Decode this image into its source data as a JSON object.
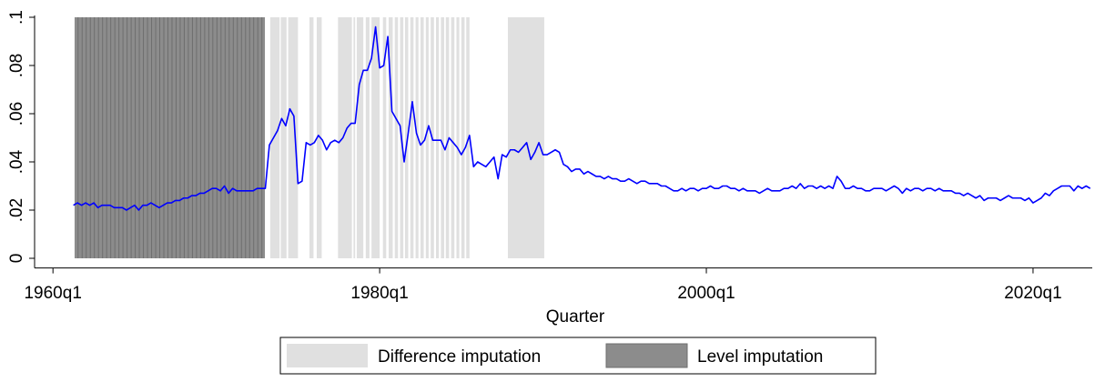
{
  "chart_data": {
    "type": "line",
    "x_label": "Quarter",
    "xlim": [
      -4.5,
      254.5
    ],
    "xticks": [
      {
        "value": 0,
        "label": "1960q1"
      },
      {
        "value": 80,
        "label": "1980q1"
      },
      {
        "value": 160,
        "label": "2000q1"
      },
      {
        "value": 240,
        "label": "2020q1"
      }
    ],
    "ylim": [
      -0.004,
      0.1
    ],
    "yticks": [
      0,
      {
        "value": 0.02,
        "label": ".02"
      },
      {
        "value": 0.04,
        "label": ".04"
      },
      {
        "value": 0.06,
        "label": ".06"
      },
      {
        "value": 0.08,
        "label": ".08"
      },
      {
        "value": 0.1,
        "label": ".1"
      }
    ],
    "legend": "bottom",
    "shaded": [
      {
        "name": "Difference imputation",
        "color": "#e0e0e0",
        "spans": [
          [
            53.2,
            55.5
          ],
          [
            55.8,
            57.2
          ],
          [
            57.6,
            60
          ],
          [
            62.8,
            63.8
          ],
          [
            64.6,
            65.8
          ],
          [
            69.8,
            73.2
          ],
          [
            73.6,
            74
          ],
          [
            74.4,
            76
          ],
          [
            76.6,
            77.5
          ],
          [
            78,
            80
          ],
          [
            80.8,
            81.6
          ],
          [
            82.2,
            83.2
          ],
          [
            83.7,
            84.5
          ],
          [
            85,
            85.8
          ],
          [
            86.2,
            87
          ],
          [
            87.5,
            88.3
          ],
          [
            88.8,
            89.5
          ],
          [
            90,
            90.8
          ],
          [
            91.3,
            92
          ],
          [
            92.5,
            93.3
          ],
          [
            93.8,
            94.5
          ],
          [
            95,
            95.8
          ],
          [
            96.2,
            97
          ],
          [
            97.5,
            98.3
          ],
          [
            98.8,
            99.5
          ],
          [
            100,
            100.8
          ],
          [
            101.2,
            102
          ],
          [
            111.4,
            120.3
          ]
        ]
      },
      {
        "name": "Level imputation",
        "color": "#8c8c8c",
        "spans": [
          [
            5.3,
            51.9
          ]
        ]
      }
    ],
    "x": [
      5,
      6,
      7,
      8,
      9,
      10,
      11,
      12,
      13,
      14,
      15,
      16,
      17,
      18,
      19,
      20,
      21,
      22,
      23,
      24,
      25,
      26,
      27,
      28,
      29,
      30,
      31,
      32,
      33,
      34,
      35,
      36,
      37,
      38,
      39,
      40,
      41,
      42,
      43,
      44,
      45,
      46,
      47,
      48,
      49,
      50,
      51,
      52,
      53,
      54,
      55,
      56,
      57,
      58,
      59,
      60,
      61,
      62,
      63,
      64,
      65,
      66,
      67,
      68,
      69,
      70,
      71,
      72,
      73,
      74,
      75,
      76,
      77,
      78,
      79,
      80,
      81,
      82,
      83,
      84,
      85,
      86,
      87,
      88,
      89,
      90,
      91,
      92,
      93,
      94,
      95,
      96,
      97,
      98,
      99,
      100,
      101,
      102,
      103,
      104,
      105,
      106,
      107,
      108,
      109,
      110,
      111,
      112,
      113,
      114,
      115,
      116,
      117,
      118,
      119,
      120,
      121,
      122,
      123,
      124,
      125,
      126,
      127,
      128,
      129,
      130,
      131,
      132,
      133,
      134,
      135,
      136,
      137,
      138,
      139,
      140,
      141,
      142,
      143,
      144,
      145,
      146,
      147,
      148,
      149,
      150,
      151,
      152,
      153,
      154,
      155,
      156,
      157,
      158,
      159,
      160,
      161,
      162,
      163,
      164,
      165,
      166,
      167,
      168,
      169,
      170,
      171,
      172,
      173,
      174,
      175,
      176,
      177,
      178,
      179,
      180,
      181,
      182,
      183,
      184,
      185,
      186,
      187,
      188,
      189,
      190,
      191,
      192,
      193,
      194,
      195,
      196,
      197,
      198,
      199,
      200,
      201,
      202,
      203,
      204,
      205,
      206,
      207,
      208,
      209,
      210,
      211,
      212,
      213,
      214,
      215,
      216,
      217,
      218,
      219,
      220,
      221,
      222,
      223,
      224,
      225,
      226,
      227,
      228,
      229,
      230,
      231,
      232,
      233,
      234,
      235,
      236,
      237,
      238,
      239,
      240,
      241,
      242,
      243,
      244,
      245,
      246,
      247,
      248,
      249,
      250,
      251,
      252,
      253,
      254
    ],
    "series": [
      {
        "color": "#0000ff",
        "values": [
          0.022,
          0.023,
          0.022,
          0.023,
          0.022,
          0.023,
          0.021,
          0.022,
          0.022,
          0.022,
          0.021,
          0.021,
          0.021,
          0.02,
          0.021,
          0.022,
          0.02,
          0.022,
          0.022,
          0.023,
          0.022,
          0.021,
          0.022,
          0.023,
          0.023,
          0.024,
          0.024,
          0.025,
          0.025,
          0.026,
          0.026,
          0.027,
          0.027,
          0.028,
          0.029,
          0.029,
          0.028,
          0.03,
          0.027,
          0.029,
          0.028,
          0.028,
          0.028,
          0.028,
          0.028,
          0.029,
          0.029,
          0.029,
          0.047,
          0.05,
          0.053,
          0.058,
          0.055,
          0.062,
          0.059,
          0.031,
          0.032,
          0.048,
          0.047,
          0.048,
          0.051,
          0.049,
          0.045,
          0.048,
          0.049,
          0.048,
          0.05,
          0.054,
          0.056,
          0.056,
          0.072,
          0.078,
          0.078,
          0.083,
          0.096,
          0.079,
          0.08,
          0.092,
          0.061,
          0.058,
          0.055,
          0.04,
          0.052,
          0.065,
          0.052,
          0.047,
          0.049,
          0.055,
          0.049,
          0.049,
          0.049,
          0.045,
          0.05,
          0.048,
          0.046,
          0.043,
          0.046,
          0.051,
          0.038,
          0.04,
          0.039,
          0.038,
          0.04,
          0.042,
          0.033,
          0.043,
          0.042,
          0.045,
          0.045,
          0.044,
          0.046,
          0.048,
          0.041,
          0.044,
          0.048,
          0.043,
          0.043,
          0.044,
          0.045,
          0.044,
          0.039,
          0.038,
          0.036,
          0.037,
          0.037,
          0.035,
          0.036,
          0.035,
          0.034,
          0.034,
          0.033,
          0.034,
          0.033,
          0.033,
          0.032,
          0.032,
          0.033,
          0.032,
          0.031,
          0.032,
          0.032,
          0.031,
          0.031,
          0.031,
          0.03,
          0.03,
          0.029,
          0.028,
          0.028,
          0.029,
          0.028,
          0.029,
          0.029,
          0.028,
          0.029,
          0.029,
          0.03,
          0.029,
          0.029,
          0.03,
          0.03,
          0.029,
          0.029,
          0.028,
          0.029,
          0.028,
          0.028,
          0.028,
          0.027,
          0.028,
          0.029,
          0.028,
          0.028,
          0.028,
          0.029,
          0.029,
          0.03,
          0.029,
          0.031,
          0.029,
          0.03,
          0.03,
          0.029,
          0.03,
          0.029,
          0.03,
          0.029,
          0.034,
          0.032,
          0.029,
          0.029,
          0.03,
          0.029,
          0.029,
          0.028,
          0.028,
          0.029,
          0.029,
          0.029,
          0.028,
          0.029,
          0.03,
          0.029,
          0.027,
          0.029,
          0.028,
          0.029,
          0.029,
          0.028,
          0.029,
          0.029,
          0.028,
          0.029,
          0.028,
          0.028,
          0.028,
          0.027,
          0.027,
          0.026,
          0.027,
          0.026,
          0.025,
          0.026,
          0.024,
          0.025,
          0.025,
          0.025,
          0.024,
          0.025,
          0.026,
          0.025,
          0.025,
          0.025,
          0.024,
          0.025,
          0.023,
          0.024,
          0.025,
          0.027,
          0.026,
          0.028,
          0.029,
          0.03,
          0.03,
          0.03,
          0.028,
          0.03,
          0.029,
          0.03,
          0.029
        ]
      }
    ]
  }
}
